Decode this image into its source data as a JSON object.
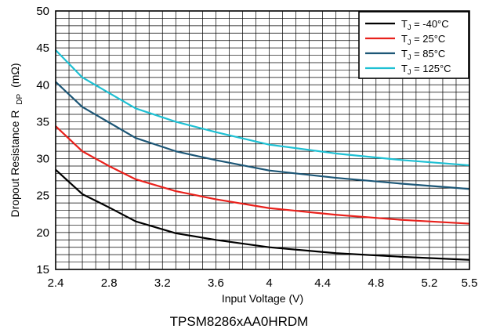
{
  "chart_data": {
    "type": "line",
    "xlabel": "Input Voltage (V)",
    "ylabel": "Dropout Resistance R",
    "ylabel_sub": "DP",
    "ylabel_unit": "(mΩ)",
    "caption": "TPSM8286xAA0HRDM",
    "xlim": [
      2.4,
      5.5
    ],
    "ylim": [
      15,
      50
    ],
    "x_ticks": [
      "2.4",
      "2.8",
      "3.2",
      "3.6",
      "4",
      "4.4",
      "4.8",
      "5.2",
      "5.5"
    ],
    "y_ticks": [
      "15",
      "20",
      "25",
      "30",
      "35",
      "40",
      "45",
      "50"
    ],
    "grid": true,
    "legend_position": "top-right",
    "series": [
      {
        "name": "T",
        "name_sub": "J",
        "name_value": " = -40°C",
        "color": "#000000",
        "x": [
          2.4,
          2.6,
          2.8,
          3.0,
          3.3,
          3.6,
          4.0,
          4.5,
          5.0,
          5.5
        ],
        "y": [
          28.5,
          25.2,
          23.4,
          21.5,
          19.9,
          19.0,
          18.0,
          17.2,
          16.7,
          16.3
        ]
      },
      {
        "name": "T",
        "name_sub": "J",
        "name_value": " =  25°C",
        "color": "#e8211c",
        "x": [
          2.4,
          2.6,
          2.8,
          3.0,
          3.3,
          3.6,
          4.0,
          4.5,
          5.0,
          5.5
        ],
        "y": [
          34.4,
          31.0,
          29.0,
          27.2,
          25.6,
          24.5,
          23.3,
          22.4,
          21.7,
          21.2
        ]
      },
      {
        "name": "T",
        "name_sub": "J",
        "name_value": " =  85°C",
        "color": "#1c5676",
        "x": [
          2.4,
          2.6,
          2.8,
          3.0,
          3.3,
          3.6,
          4.0,
          4.5,
          5.0,
          5.5
        ],
        "y": [
          40.4,
          37.0,
          34.9,
          32.8,
          31.0,
          29.8,
          28.4,
          27.4,
          26.6,
          25.9
        ]
      },
      {
        "name": "T",
        "name_sub": "J",
        "name_value": " = 125°C",
        "color": "#1ec0d3",
        "x": [
          2.4,
          2.6,
          2.8,
          3.0,
          3.3,
          3.6,
          4.0,
          4.5,
          5.0,
          5.5
        ],
        "y": [
          44.7,
          41.0,
          38.9,
          36.8,
          35.0,
          33.6,
          31.9,
          30.7,
          29.8,
          29.1
        ]
      }
    ]
  }
}
